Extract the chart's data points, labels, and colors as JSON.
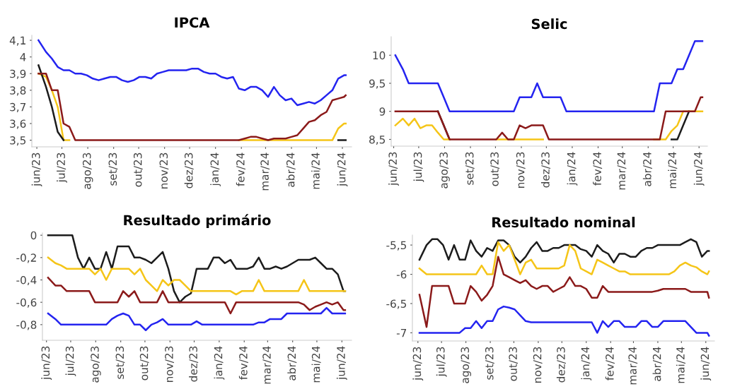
{
  "chart_data": [
    {
      "type": "line",
      "title": "IPCA",
      "xlim": [
        "2023-05-26",
        "2024-06-12"
      ],
      "ylim": [
        3.46,
        4.13
      ],
      "yticks": [
        {
          "value": 3.5,
          "label": "3,5"
        },
        {
          "value": 3.6,
          "label": "3,6"
        },
        {
          "value": 3.7,
          "label": "3,7"
        },
        {
          "value": 3.8,
          "label": "3,8"
        },
        {
          "value": 3.9,
          "label": "3,9"
        },
        {
          "value": 4,
          "label": "4"
        },
        {
          "value": 4.1,
          "label": "4,1"
        }
      ],
      "xticks": [
        {
          "value": "2023-06-01",
          "label": "jun/23"
        },
        {
          "value": "2023-07-01",
          "label": "jul/23"
        },
        {
          "value": "2023-08-01",
          "label": "ago/23"
        },
        {
          "value": "2023-09-01",
          "label": "set/23"
        },
        {
          "value": "2023-10-01",
          "label": "out/23"
        },
        {
          "value": "2023-11-01",
          "label": "nov/23"
        },
        {
          "value": "2023-12-01",
          "label": "dez/23"
        },
        {
          "value": "2024-01-01",
          "label": "jan/24"
        },
        {
          "value": "2024-02-01",
          "label": "fev/24"
        },
        {
          "value": "2024-03-01",
          "label": "mar/24"
        },
        {
          "value": "2024-04-01",
          "label": "abr/24"
        },
        {
          "value": "2024-05-01",
          "label": "mai/24"
        },
        {
          "value": "2024-06-01",
          "label": "jun/24"
        }
      ],
      "x": [
        "2023-06-03",
        "2023-06-12",
        "2023-06-19",
        "2023-06-26",
        "2023-07-03",
        "2023-07-10",
        "2023-07-17",
        "2023-07-24",
        "2023-07-31",
        "2023-08-07",
        "2023-08-14",
        "2023-08-21",
        "2023-08-28",
        "2023-09-04",
        "2023-09-11",
        "2023-09-18",
        "2023-09-25",
        "2023-10-02",
        "2023-10-09",
        "2023-10-16",
        "2023-10-23",
        "2023-10-30",
        "2023-11-06",
        "2023-11-13",
        "2023-11-20",
        "2023-11-27",
        "2023-12-04",
        "2023-12-11",
        "2023-12-18",
        "2023-12-25",
        "2024-01-01",
        "2024-01-08",
        "2024-01-15",
        "2024-01-22",
        "2024-01-29",
        "2024-02-05",
        "2024-02-12",
        "2024-02-19",
        "2024-02-26",
        "2024-03-04",
        "2024-03-11",
        "2024-03-18",
        "2024-03-25",
        "2024-04-01",
        "2024-04-08",
        "2024-04-15",
        "2024-04-22",
        "2024-04-29",
        "2024-05-06",
        "2024-05-13",
        "2024-05-20",
        "2024-05-27",
        "2024-06-03",
        "2024-06-05"
      ],
      "series": [
        {
          "color": "#2424f0",
          "values": [
            4.1,
            4.03,
            3.99,
            3.94,
            3.92,
            3.92,
            3.9,
            3.9,
            3.89,
            3.87,
            3.86,
            3.87,
            3.88,
            3.88,
            3.86,
            3.85,
            3.86,
            3.88,
            3.88,
            3.87,
            3.9,
            3.91,
            3.92,
            3.92,
            3.92,
            3.92,
            3.93,
            3.93,
            3.91,
            3.9,
            3.9,
            3.88,
            3.87,
            3.88,
            3.81,
            3.8,
            3.82,
            3.82,
            3.8,
            3.76,
            3.82,
            3.77,
            3.74,
            3.75,
            3.71,
            3.72,
            3.73,
            3.72,
            3.74,
            3.77,
            3.8,
            3.87,
            3.89,
            3.89
          ]
        },
        {
          "color": "#f5c518",
          "values": [
            3.9,
            3.88,
            3.8,
            3.7,
            3.5,
            3.5,
            null,
            null,
            null,
            null,
            null,
            null,
            null,
            null,
            null,
            null,
            null,
            null,
            null,
            null,
            null,
            null,
            null,
            null,
            null,
            null,
            null,
            null,
            null,
            null,
            null,
            null,
            null,
            null,
            3.5,
            3.5,
            3.5,
            3.5,
            3.5,
            3.5,
            3.5,
            3.5,
            3.5,
            3.5,
            3.5,
            3.5,
            3.5,
            3.5,
            3.5,
            3.5,
            3.5,
            3.57,
            3.6,
            3.6
          ]
        },
        {
          "color": "#1c1c1c",
          "values": [
            3.95,
            3.82,
            3.7,
            3.55,
            3.5,
            null,
            null,
            null,
            null,
            null,
            null,
            null,
            null,
            null,
            null,
            null,
            null,
            null,
            null,
            null,
            null,
            null,
            null,
            null,
            null,
            null,
            null,
            null,
            null,
            null,
            null,
            null,
            null,
            null,
            null,
            null,
            null,
            null,
            null,
            null,
            null,
            null,
            null,
            null,
            null,
            null,
            null,
            null,
            null,
            null,
            null,
            3.5,
            3.5,
            3.5
          ]
        },
        {
          "color": "#8b1a1a",
          "values": [
            3.9,
            3.9,
            3.8,
            3.8,
            3.6,
            3.58,
            3.5,
            3.5,
            3.5,
            3.5,
            3.5,
            3.5,
            3.5,
            3.5,
            3.5,
            3.5,
            3.5,
            3.5,
            3.5,
            3.5,
            3.5,
            3.5,
            3.5,
            3.5,
            3.5,
            3.5,
            3.5,
            3.5,
            3.5,
            3.5,
            3.5,
            3.5,
            3.5,
            3.5,
            3.5,
            3.51,
            3.52,
            3.52,
            3.51,
            3.5,
            3.51,
            3.51,
            3.51,
            3.52,
            3.53,
            3.57,
            3.61,
            3.62,
            3.65,
            3.67,
            3.74,
            3.75,
            3.76,
            3.77
          ]
        }
      ]
    },
    {
      "type": "line",
      "title": "Selic",
      "xlim": [
        "2023-05-29",
        "2024-06-11"
      ],
      "ylim": [
        8.38,
        10.33
      ],
      "yticks": [
        {
          "value": 8.5,
          "label": "8,5"
        },
        9,
        {
          "value": 9.5,
          "label": "9,5"
        },
        10
      ],
      "xticks": [
        {
          "value": "2023-06-01",
          "label": "jun/23"
        },
        {
          "value": "2023-07-01",
          "label": "jul/23"
        },
        {
          "value": "2023-08-01",
          "label": "ago/23"
        },
        {
          "value": "2023-09-01",
          "label": "set/23"
        },
        {
          "value": "2023-10-01",
          "label": "out/23"
        },
        {
          "value": "2023-11-01",
          "label": "nov/23"
        },
        {
          "value": "2023-12-01",
          "label": "dez/23"
        },
        {
          "value": "2024-01-01",
          "label": "jan/24"
        },
        {
          "value": "2024-02-01",
          "label": "fev/24"
        },
        {
          "value": "2024-03-01",
          "label": "mar/24"
        },
        {
          "value": "2024-04-01",
          "label": "abr/24"
        },
        {
          "value": "2024-05-01",
          "label": "mai/24"
        },
        {
          "value": "2024-06-01",
          "label": "jun/24"
        }
      ],
      "x": [
        "2023-06-03",
        "2023-06-12",
        "2023-06-19",
        "2023-06-26",
        "2023-07-03",
        "2023-07-10",
        "2023-07-17",
        "2023-07-24",
        "2023-07-31",
        "2023-08-07",
        "2023-08-14",
        "2023-08-21",
        "2023-08-28",
        "2023-09-04",
        "2023-09-11",
        "2023-09-18",
        "2023-09-25",
        "2023-10-02",
        "2023-10-09",
        "2023-10-16",
        "2023-10-23",
        "2023-10-30",
        "2023-11-06",
        "2023-11-13",
        "2023-11-20",
        "2023-11-27",
        "2023-12-04",
        "2023-12-11",
        "2023-12-18",
        "2023-12-25",
        "2024-01-01",
        "2024-01-08",
        "2024-01-15",
        "2024-01-22",
        "2024-01-29",
        "2024-02-05",
        "2024-02-12",
        "2024-02-19",
        "2024-02-26",
        "2024-03-04",
        "2024-03-11",
        "2024-03-18",
        "2024-03-25",
        "2024-04-01",
        "2024-04-08",
        "2024-04-15",
        "2024-04-22",
        "2024-04-29",
        "2024-05-06",
        "2024-05-13",
        "2024-05-20",
        "2024-05-27",
        "2024-06-03",
        "2024-06-05"
      ],
      "series": [
        {
          "color": "#2424f0",
          "values": [
            10,
            9.75,
            9.5,
            9.5,
            9.5,
            9.5,
            9.5,
            9.5,
            9.25,
            9,
            9,
            9,
            9,
            9,
            9,
            9,
            9,
            9,
            9,
            9,
            9,
            9.25,
            9.25,
            9.25,
            9.5,
            9.25,
            9.25,
            9.25,
            9.25,
            9,
            9,
            9,
            9,
            9,
            9,
            9,
            9,
            9,
            9,
            9,
            9,
            9,
            9,
            9,
            9,
            9.5,
            9.5,
            9.5,
            9.75,
            9.75,
            10,
            10.25,
            10.25,
            10.25
          ]
        },
        {
          "color": "#1c1c1c",
          "values": [
            null,
            null,
            null,
            null,
            null,
            null,
            null,
            9,
            8.75,
            8.5,
            null,
            null,
            null,
            null,
            null,
            null,
            null,
            null,
            null,
            null,
            null,
            null,
            null,
            null,
            null,
            null,
            null,
            null,
            null,
            null,
            null,
            null,
            null,
            null,
            null,
            null,
            null,
            null,
            null,
            null,
            null,
            null,
            null,
            null,
            null,
            null,
            null,
            8.5,
            8.5,
            8.75,
            9,
            null,
            null,
            null
          ]
        },
        {
          "color": "#f5c518",
          "values": [
            8.75,
            8.87,
            8.75,
            8.87,
            8.7,
            8.75,
            8.75,
            8.62,
            8.5,
            8.5,
            null,
            null,
            null,
            null,
            null,
            null,
            null,
            8.5,
            8.5,
            8.5,
            8.5,
            8.5,
            8.5,
            8.5,
            8.5,
            8.5,
            null,
            null,
            null,
            null,
            null,
            null,
            null,
            null,
            null,
            null,
            null,
            null,
            null,
            null,
            null,
            null,
            null,
            null,
            8.5,
            8.5,
            8.5,
            8.65,
            8.75,
            9,
            9,
            9,
            9,
            9
          ]
        },
        {
          "color": "#8b1a1a",
          "values": [
            9,
            9,
            9,
            9,
            9,
            9,
            9,
            9,
            8.75,
            8.5,
            8.5,
            8.5,
            8.5,
            8.5,
            8.5,
            8.5,
            8.5,
            8.5,
            8.62,
            8.5,
            8.5,
            8.75,
            8.7,
            8.75,
            8.75,
            8.75,
            8.5,
            8.5,
            8.5,
            8.5,
            8.5,
            8.5,
            8.5,
            8.5,
            8.5,
            8.5,
            8.5,
            8.5,
            8.5,
            8.5,
            8.5,
            8.5,
            8.5,
            8.5,
            8.5,
            8.5,
            9,
            9,
            9,
            9,
            9,
            9,
            9.25,
            9.25
          ]
        }
      ]
    },
    {
      "type": "line",
      "title": "Resultado primário",
      "xlim": [
        "2023-05-27",
        "2024-06-13"
      ],
      "ylim": [
        -0.94,
        0.02
      ],
      "yticks": [
        {
          "value": -0.8,
          "label": "-0,8"
        },
        {
          "value": -0.6,
          "label": "-0,6"
        },
        {
          "value": -0.4,
          "label": "-0,4"
        },
        {
          "value": -0.2,
          "label": "-0,2"
        },
        0
      ],
      "xticks": [
        {
          "value": "2023-06-01",
          "label": "jun/23"
        },
        {
          "value": "2023-07-01",
          "label": "jul/23"
        },
        {
          "value": "2023-08-01",
          "label": "ago/23"
        },
        {
          "value": "2023-09-01",
          "label": "set/23"
        },
        {
          "value": "2023-10-01",
          "label": "out/23"
        },
        {
          "value": "2023-11-01",
          "label": "nov/23"
        },
        {
          "value": "2023-12-01",
          "label": "dez/23"
        },
        {
          "value": "2024-01-01",
          "label": "jan/24"
        },
        {
          "value": "2024-02-01",
          "label": "fev/24"
        },
        {
          "value": "2024-03-01",
          "label": "mar/24"
        },
        {
          "value": "2024-04-01",
          "label": "abr/24"
        },
        {
          "value": "2024-05-01",
          "label": "mai/24"
        },
        {
          "value": "2024-06-01",
          "label": "jun/24"
        }
      ],
      "x": [
        "2023-06-03",
        "2023-06-12",
        "2023-06-19",
        "2023-06-26",
        "2023-07-03",
        "2023-07-10",
        "2023-07-17",
        "2023-07-24",
        "2023-07-31",
        "2023-08-07",
        "2023-08-14",
        "2023-08-21",
        "2023-08-28",
        "2023-09-04",
        "2023-09-11",
        "2023-09-18",
        "2023-09-25",
        "2023-10-02",
        "2023-10-09",
        "2023-10-16",
        "2023-10-23",
        "2023-10-30",
        "2023-11-06",
        "2023-11-13",
        "2023-11-20",
        "2023-11-27",
        "2023-12-04",
        "2023-12-11",
        "2023-12-18",
        "2023-12-25",
        "2024-01-01",
        "2024-01-08",
        "2024-01-15",
        "2024-01-22",
        "2024-01-29",
        "2024-02-05",
        "2024-02-12",
        "2024-02-19",
        "2024-02-26",
        "2024-03-04",
        "2024-03-11",
        "2024-03-18",
        "2024-03-25",
        "2024-04-01",
        "2024-04-08",
        "2024-04-15",
        "2024-04-22",
        "2024-04-29",
        "2024-05-06",
        "2024-05-13",
        "2024-05-20",
        "2024-05-27",
        "2024-06-03",
        "2024-06-05"
      ],
      "series": [
        {
          "color": "#2424f0",
          "values": [
            -0.7,
            -0.75,
            -0.8,
            -0.8,
            -0.8,
            -0.8,
            -0.8,
            -0.8,
            -0.8,
            -0.8,
            -0.8,
            -0.75,
            -0.72,
            -0.7,
            -0.72,
            -0.8,
            -0.8,
            -0.85,
            -0.8,
            -0.78,
            -0.75,
            -0.8,
            -0.8,
            -0.8,
            -0.8,
            -0.8,
            -0.77,
            -0.8,
            -0.8,
            -0.8,
            -0.8,
            -0.8,
            -0.8,
            -0.8,
            -0.8,
            -0.8,
            -0.8,
            -0.78,
            -0.78,
            -0.75,
            -0.75,
            -0.75,
            -0.7,
            -0.7,
            -0.7,
            -0.7,
            -0.7,
            -0.7,
            -0.7,
            -0.65,
            -0.7,
            -0.7,
            -0.7,
            -0.7
          ]
        },
        {
          "color": "#1c1c1c",
          "values": [
            0,
            0,
            0,
            0,
            0,
            -0.2,
            -0.3,
            -0.2,
            -0.3,
            -0.3,
            -0.15,
            -0.3,
            -0.1,
            -0.1,
            -0.1,
            -0.2,
            -0.2,
            -0.22,
            -0.25,
            -0.2,
            -0.15,
            -0.3,
            -0.5,
            -0.6,
            -0.55,
            -0.52,
            -0.3,
            -0.3,
            -0.3,
            -0.2,
            -0.2,
            -0.25,
            -0.22,
            -0.3,
            -0.3,
            -0.3,
            -0.28,
            -0.2,
            -0.3,
            -0.3,
            -0.28,
            -0.3,
            -0.28,
            -0.25,
            -0.22,
            -0.22,
            -0.22,
            -0.2,
            -0.25,
            -0.3,
            -0.3,
            -0.35,
            -0.5,
            -0.5
          ]
        },
        {
          "color": "#f5c518",
          "values": [
            -0.2,
            -0.25,
            -0.27,
            -0.3,
            -0.3,
            -0.3,
            -0.3,
            -0.3,
            -0.35,
            -0.3,
            -0.4,
            -0.3,
            -0.3,
            -0.3,
            -0.3,
            -0.35,
            -0.3,
            -0.4,
            -0.45,
            -0.5,
            -0.4,
            -0.45,
            -0.4,
            -0.4,
            -0.45,
            -0.5,
            -0.5,
            -0.5,
            -0.5,
            -0.5,
            -0.5,
            -0.5,
            -0.5,
            -0.53,
            -0.5,
            -0.5,
            -0.5,
            -0.4,
            -0.5,
            -0.5,
            -0.5,
            -0.5,
            -0.5,
            -0.5,
            -0.5,
            -0.4,
            -0.5,
            -0.5,
            -0.5,
            -0.5,
            -0.5,
            -0.5,
            -0.5,
            -0.5
          ]
        },
        {
          "color": "#8b1a1a",
          "values": [
            -0.38,
            -0.45,
            -0.45,
            -0.5,
            -0.5,
            -0.5,
            -0.5,
            -0.5,
            -0.6,
            -0.6,
            -0.6,
            -0.6,
            -0.6,
            -0.5,
            -0.55,
            -0.5,
            -0.6,
            -0.6,
            -0.6,
            -0.6,
            -0.5,
            -0.6,
            -0.6,
            -0.6,
            -0.6,
            -0.6,
            -0.6,
            -0.6,
            -0.6,
            -0.6,
            -0.6,
            -0.6,
            -0.7,
            -0.6,
            -0.6,
            -0.6,
            -0.6,
            -0.6,
            -0.6,
            -0.6,
            -0.6,
            -0.6,
            -0.6,
            -0.6,
            -0.6,
            -0.62,
            -0.67,
            -0.64,
            -0.62,
            -0.6,
            -0.62,
            -0.6,
            -0.67,
            -0.67
          ]
        }
      ]
    },
    {
      "type": "line",
      "title": "Resultado nominal",
      "xlim": [
        "2023-05-25",
        "2024-06-12"
      ],
      "ylim": [
        -7.14,
        -5.33
      ],
      "yticks": [
        -7,
        {
          "value": -6.5,
          "label": "-6,5"
        },
        -6,
        {
          "value": -5.5,
          "label": "-5,5"
        }
      ],
      "xticks": [
        {
          "value": "2023-06-01",
          "label": "jun/23"
        },
        {
          "value": "2023-07-01",
          "label": "jul/23"
        },
        {
          "value": "2023-08-01",
          "label": "ago/23"
        },
        {
          "value": "2023-09-01",
          "label": "set/23"
        },
        {
          "value": "2023-10-01",
          "label": "out/23"
        },
        {
          "value": "2023-11-01",
          "label": "nov/23"
        },
        {
          "value": "2023-12-01",
          "label": "dez/23"
        },
        {
          "value": "2024-01-01",
          "label": "jan/24"
        },
        {
          "value": "2024-02-01",
          "label": "fev/24"
        },
        {
          "value": "2024-03-01",
          "label": "mar/24"
        },
        {
          "value": "2024-04-01",
          "label": "abr/24"
        },
        {
          "value": "2024-05-01",
          "label": "mai/24"
        },
        {
          "value": "2024-06-01",
          "label": "jun/24"
        }
      ],
      "x": [
        "2023-06-03",
        "2023-06-12",
        "2023-06-19",
        "2023-06-26",
        "2023-07-03",
        "2023-07-10",
        "2023-07-17",
        "2023-07-24",
        "2023-07-31",
        "2023-08-07",
        "2023-08-14",
        "2023-08-21",
        "2023-08-28",
        "2023-09-04",
        "2023-09-11",
        "2023-09-18",
        "2023-09-25",
        "2023-10-02",
        "2023-10-09",
        "2023-10-16",
        "2023-10-23",
        "2023-10-30",
        "2023-11-06",
        "2023-11-13",
        "2023-11-20",
        "2023-11-27",
        "2023-12-04",
        "2023-12-11",
        "2023-12-18",
        "2023-12-25",
        "2024-01-01",
        "2024-01-08",
        "2024-01-15",
        "2024-01-22",
        "2024-01-29",
        "2024-02-05",
        "2024-02-12",
        "2024-02-19",
        "2024-02-26",
        "2024-03-04",
        "2024-03-11",
        "2024-03-18",
        "2024-03-25",
        "2024-04-01",
        "2024-04-08",
        "2024-04-15",
        "2024-04-22",
        "2024-04-29",
        "2024-05-06",
        "2024-05-13",
        "2024-05-20",
        "2024-05-27",
        "2024-06-03",
        "2024-06-05"
      ],
      "series": [
        {
          "color": "#2424f0",
          "values": [
            -7,
            -7,
            -7,
            -7,
            -7,
            -7,
            -7,
            -7,
            -6.92,
            -6.92,
            -6.8,
            -6.92,
            -6.8,
            -6.8,
            -6.6,
            -6.55,
            -6.57,
            -6.6,
            -6.7,
            -6.8,
            -6.82,
            -6.82,
            -6.82,
            -6.82,
            -6.82,
            -6.82,
            -6.82,
            -6.82,
            -6.82,
            -6.82,
            -6.82,
            -6.82,
            -7,
            -6.8,
            -6.9,
            -6.8,
            -6.8,
            -6.9,
            -6.9,
            -6.9,
            -6.8,
            -6.8,
            -6.9,
            -6.9,
            -6.8,
            -6.8,
            -6.8,
            -6.8,
            -6.8,
            -6.9,
            -7,
            -7,
            -7,
            -7.05
          ]
        },
        {
          "color": "#1c1c1c",
          "values": [
            -5.75,
            -5.5,
            -5.4,
            -5.4,
            -5.5,
            -5.75,
            -5.5,
            -5.75,
            -5.75,
            -5.42,
            -5.6,
            -5.7,
            -5.55,
            -5.6,
            -5.42,
            -5.42,
            -5.5,
            -5.7,
            -5.8,
            -5.7,
            -5.55,
            -5.45,
            -5.6,
            -5.6,
            -5.55,
            -5.55,
            -5.5,
            -5.5,
            -5.5,
            -5.57,
            -5.6,
            -5.7,
            -5.5,
            -5.6,
            -5.65,
            -5.8,
            -5.65,
            -5.65,
            -5.7,
            -5.7,
            -5.6,
            -5.55,
            -5.55,
            -5.5,
            -5.5,
            -5.5,
            -5.5,
            -5.5,
            -5.45,
            -5.4,
            -5.45,
            -5.7,
            -5.6,
            -5.6
          ]
        },
        {
          "color": "#f5c518",
          "values": [
            -5.9,
            -6,
            -6,
            -6,
            -6,
            -6,
            -6,
            -6,
            -6,
            -6,
            -6,
            -5.85,
            -6,
            -6,
            -5.45,
            -5.6,
            -5.5,
            -5.75,
            -6,
            -5.8,
            -5.75,
            -5.9,
            -5.9,
            -5.9,
            -5.9,
            -5.9,
            -5.85,
            -5.5,
            -5.6,
            -5.9,
            -5.95,
            -6,
            -5.75,
            -5.8,
            -5.85,
            -5.9,
            -5.95,
            -5.95,
            -6,
            -6,
            -6,
            -6,
            -6,
            -6,
            -6,
            -6,
            -5.95,
            -5.85,
            -5.8,
            -5.85,
            -5.88,
            -5.95,
            -6,
            -5.95
          ]
        },
        {
          "color": "#8b1a1a",
          "values": [
            -6.35,
            -6.9,
            -6.2,
            -6.2,
            -6.2,
            -6.2,
            -6.5,
            -6.5,
            -6.5,
            -6.2,
            -6.3,
            -6.45,
            -6.35,
            -6.2,
            -5.7,
            -6,
            -6.05,
            -6.1,
            -6.15,
            -6.1,
            -6.2,
            -6.25,
            -6.2,
            -6.2,
            -6.3,
            -6.25,
            -6.2,
            -6.05,
            -6.2,
            -6.2,
            -6.25,
            -6.4,
            -6.4,
            -6.2,
            -6.3,
            -6.3,
            -6.3,
            -6.3,
            -6.3,
            -6.3,
            -6.3,
            -6.3,
            -6.3,
            -6.28,
            -6.25,
            -6.25,
            -6.25,
            -6.25,
            -6.25,
            -6.3,
            -6.3,
            -6.3,
            -6.3,
            -6.4
          ]
        }
      ]
    }
  ]
}
